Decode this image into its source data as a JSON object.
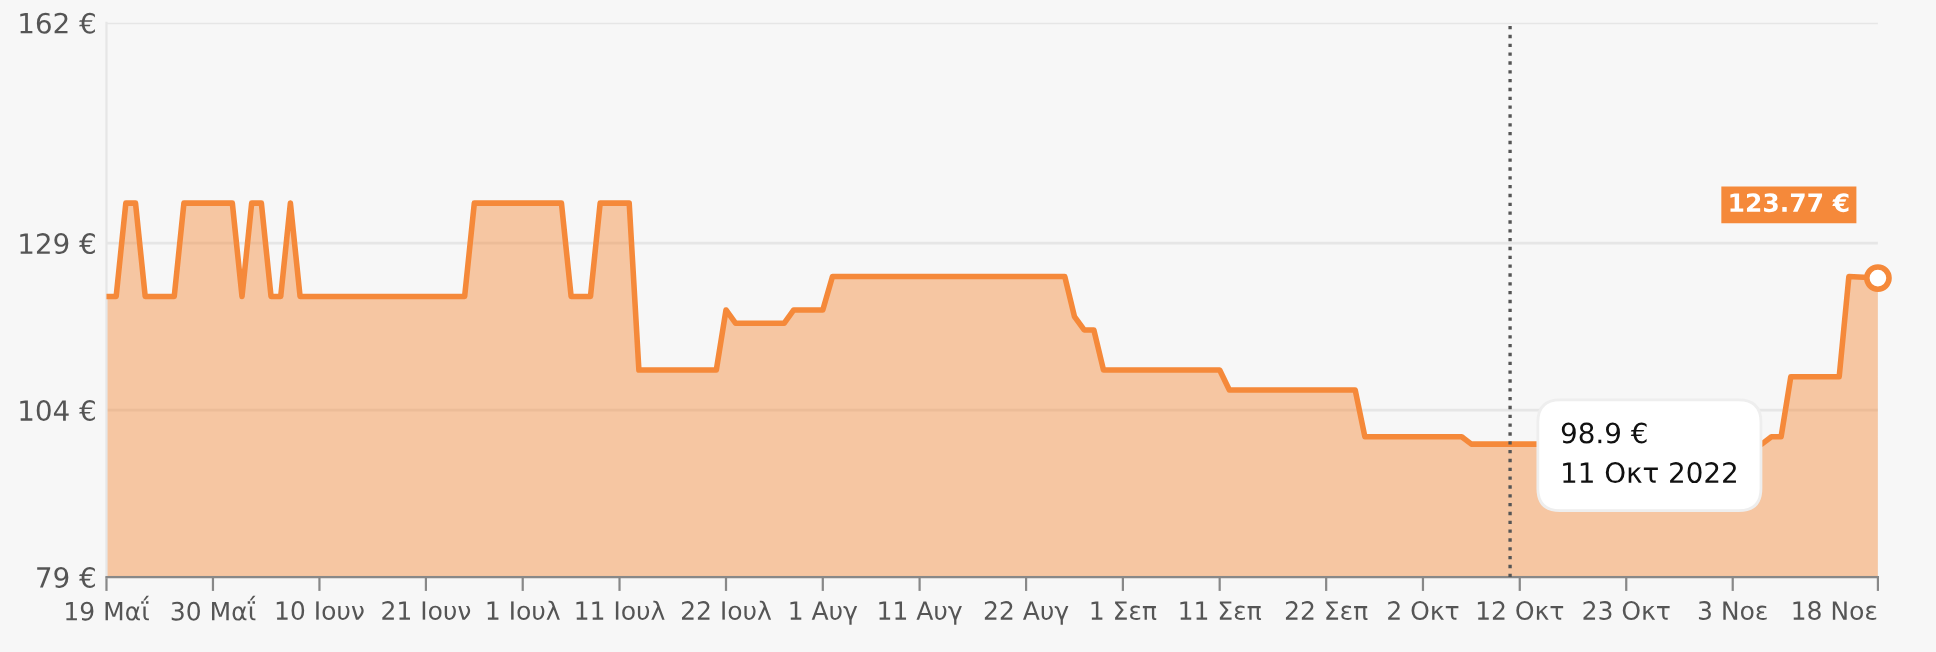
{
  "chart_data": {
    "type": "area",
    "x": [
      "2022-05-19",
      "2022-05-20",
      "2022-05-21",
      "2022-05-22",
      "2022-05-23",
      "2022-05-26",
      "2022-05-27",
      "2022-06-01",
      "2022-06-02",
      "2022-06-03",
      "2022-06-04",
      "2022-06-05",
      "2022-06-06",
      "2022-06-07",
      "2022-06-08",
      "2022-06-25",
      "2022-06-26",
      "2022-07-05",
      "2022-07-06",
      "2022-07-08",
      "2022-07-09",
      "2022-07-12",
      "2022-07-13",
      "2022-07-21",
      "2022-07-22",
      "2022-07-23",
      "2022-07-28",
      "2022-07-29",
      "2022-08-01",
      "2022-08-02",
      "2022-08-26",
      "2022-08-27",
      "2022-08-28",
      "2022-08-29",
      "2022-08-30",
      "2022-09-11",
      "2022-09-12",
      "2022-09-25",
      "2022-09-26",
      "2022-10-06",
      "2022-10-07",
      "2022-10-11",
      "2022-11-06",
      "2022-11-07",
      "2022-11-08",
      "2022-11-09",
      "2022-11-14",
      "2022-11-15",
      "2022-11-18"
    ],
    "series": [
      {
        "color": "#f5893a",
        "values": [
          121,
          121,
          135,
          135,
          121,
          121,
          135,
          135,
          121,
          135,
          135,
          121,
          121,
          135,
          121,
          121,
          135,
          135,
          121,
          121,
          135,
          135,
          110,
          110,
          119,
          117,
          117,
          119,
          119,
          124,
          124,
          118,
          116,
          116,
          110,
          110,
          107,
          107,
          100,
          100,
          98.9,
          98.9,
          98.9,
          100,
          100,
          109,
          109,
          124,
          123.77
        ]
      }
    ],
    "ylim": [
      79,
      162
    ],
    "yticks": [
      {
        "value": 79,
        "label": "79 €"
      },
      {
        "value": 104,
        "label": "104 €"
      },
      {
        "value": 129,
        "label": "129 €"
      },
      {
        "value": 162,
        "label": "162 €"
      }
    ],
    "xlim": [
      "2022-05-19",
      "2022-11-18"
    ],
    "xticks": [
      {
        "value": "2022-05-19",
        "label": "19 Μαΐ"
      },
      {
        "value": "2022-05-30",
        "label": "30 Μαΐ"
      },
      {
        "value": "2022-06-10",
        "label": "10 Ιουν"
      },
      {
        "value": "2022-06-21",
        "label": "21 Ιουν"
      },
      {
        "value": "2022-07-01",
        "label": "1 Ιουλ"
      },
      {
        "value": "2022-07-11",
        "label": "11 Ιουλ"
      },
      {
        "value": "2022-07-22",
        "label": "22 Ιουλ"
      },
      {
        "value": "2022-08-01",
        "label": "1 Αυγ"
      },
      {
        "value": "2022-08-11",
        "label": "11 Αυγ"
      },
      {
        "value": "2022-08-22",
        "label": "22 Αυγ"
      },
      {
        "value": "2022-09-01",
        "label": "1 Σεπ"
      },
      {
        "value": "2022-09-11",
        "label": "11 Σεπ"
      },
      {
        "value": "2022-09-22",
        "label": "22 Σεπ"
      },
      {
        "value": "2022-10-02",
        "label": "2 Οκτ"
      },
      {
        "value": "2022-10-12",
        "label": "12 Οκτ"
      },
      {
        "value": "2022-10-23",
        "label": "23 Οκτ"
      },
      {
        "value": "2022-11-03",
        "label": "3 Νοε"
      },
      {
        "value": "2022-11-18",
        "label": "18 Νοε"
      }
    ],
    "grid": "y",
    "marker": "none",
    "ref_lines": [
      {
        "axis": "x",
        "value": "2022-10-11",
        "line_style": "dotted",
        "color": "#555555"
      }
    ],
    "annotations": [
      {
        "text": "98.9 €",
        "x": "2022-10-11",
        "y": 98.9
      },
      "11 Οκτ 2022",
      {
        "text": "123.77 €",
        "x": "2022-11-18",
        "y": 123.77
      }
    ]
  }
}
